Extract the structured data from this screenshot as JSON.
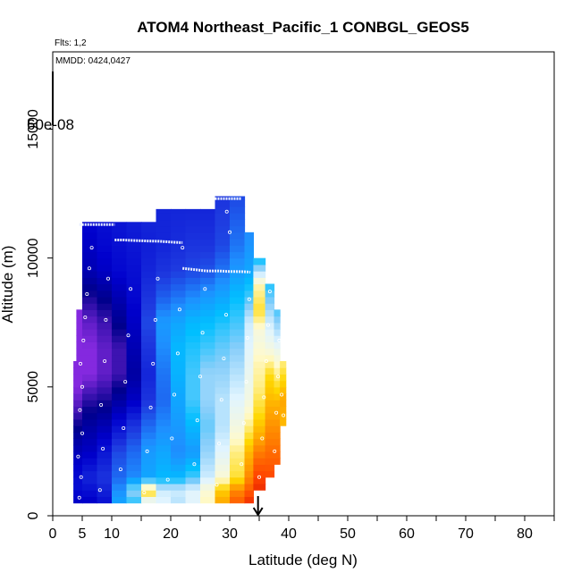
{
  "chart_data": {
    "type": "heatmap",
    "title": "ATOM4 Northeast_Pacific_1 CONBGL_GEOS5",
    "annotations": {
      "flights": "Flts: 1,2",
      "dates": "MMDD: 0424,0427",
      "colorbar_label": "60e-08"
    },
    "xlabel": "Latitude (deg N)",
    "ylabel": "Altitude (m)",
    "xlim": [
      0,
      85
    ],
    "ylim": [
      0,
      18000
    ],
    "x_tick_labels": [
      {
        "v": 0,
        "t": "0"
      },
      {
        "v": 5,
        "t": "5"
      },
      {
        "v": 10,
        "t": "10"
      },
      {
        "v": 20,
        "t": "20"
      },
      {
        "v": 30,
        "t": "30"
      },
      {
        "v": 40,
        "t": "40"
      },
      {
        "v": 50,
        "t": "50"
      },
      {
        "v": 60,
        "t": "60"
      },
      {
        "v": 70,
        "t": "70"
      },
      {
        "v": 80,
        "t": "80"
      }
    ],
    "x_minor_ticks": [
      15,
      25,
      35,
      45,
      55,
      65,
      75,
      85
    ],
    "y_tick_labels": [
      {
        "v": 0,
        "t": "0"
      },
      {
        "v": 5000,
        "t": "5000"
      },
      {
        "v": 10000,
        "t": "10000"
      },
      {
        "v": 15000,
        "t": "15000"
      }
    ],
    "colormap": [
      "#4b0082",
      "#8a2be2",
      "#00008b",
      "#0000cd",
      "#1e3ae0",
      "#1e90ff",
      "#00bfff",
      "#87cefa",
      "#e0f4ff",
      "#fffacd",
      "#ffd700",
      "#ff8c00",
      "#ff4500",
      "#cc0000"
    ],
    "profile_columns": [
      {
        "x0": 3.5,
        "x1": 5,
        "ymin": 500,
        "ymax": 6000,
        "v": [
          [
            500,
            0.22
          ],
          [
            1200,
            0.25
          ],
          [
            2000,
            0.23
          ],
          [
            3000,
            0.18
          ],
          [
            4000,
            0.12
          ],
          [
            5000,
            0.08
          ],
          [
            6000,
            0.08
          ]
        ]
      },
      {
        "x0": 4,
        "x1": 5,
        "ymin": 6000,
        "ymax": 8000,
        "v": [
          [
            6000,
            0.08
          ],
          [
            8000,
            0.08
          ]
        ]
      },
      {
        "x0": 5,
        "x1": 7.5,
        "ymin": 500,
        "ymax": 11400,
        "v": [
          [
            500,
            0.22
          ],
          [
            1500,
            0.28
          ],
          [
            2500,
            0.22
          ],
          [
            3500,
            0.18
          ],
          [
            4500,
            0.13
          ],
          [
            5500,
            0.08
          ],
          [
            6500,
            0.08
          ],
          [
            7500,
            0.1
          ],
          [
            8500,
            0.14
          ],
          [
            9500,
            0.2
          ],
          [
            10500,
            0.22
          ],
          [
            11400,
            0.24
          ]
        ]
      },
      {
        "x0": 7.5,
        "x1": 10,
        "ymin": 500,
        "ymax": 11400,
        "v": [
          [
            500,
            0.25
          ],
          [
            1500,
            0.3
          ],
          [
            2500,
            0.26
          ],
          [
            3500,
            0.2
          ],
          [
            4500,
            0.14
          ],
          [
            5500,
            0.1
          ],
          [
            6500,
            0.1
          ],
          [
            7500,
            0.12
          ],
          [
            8500,
            0.16
          ],
          [
            9500,
            0.22
          ],
          [
            10500,
            0.24
          ],
          [
            11400,
            0.25
          ]
        ]
      },
      {
        "x0": 10,
        "x1": 12.5,
        "ymin": 500,
        "ymax": 11400,
        "v": [
          [
            500,
            0.42
          ],
          [
            1500,
            0.35
          ],
          [
            2500,
            0.32
          ],
          [
            3500,
            0.25
          ],
          [
            4500,
            0.18
          ],
          [
            5500,
            0.12
          ],
          [
            6500,
            0.12
          ],
          [
            7500,
            0.16
          ],
          [
            8500,
            0.2
          ],
          [
            9500,
            0.24
          ],
          [
            10500,
            0.25
          ],
          [
            11400,
            0.26
          ]
        ]
      },
      {
        "x0": 12.5,
        "x1": 15,
        "ymin": 500,
        "ymax": 11400,
        "v": [
          [
            500,
            0.48
          ],
          [
            1000,
            0.55
          ],
          [
            1500,
            0.38
          ],
          [
            2500,
            0.35
          ],
          [
            3500,
            0.3
          ],
          [
            4500,
            0.22
          ],
          [
            5500,
            0.18
          ],
          [
            6500,
            0.2
          ],
          [
            7500,
            0.22
          ],
          [
            8500,
            0.24
          ],
          [
            9500,
            0.25
          ],
          [
            10500,
            0.26
          ],
          [
            11400,
            0.27
          ]
        ]
      },
      {
        "x0": 15,
        "x1": 17.5,
        "ymin": 500,
        "ymax": 11400,
        "v": [
          [
            500,
            0.6
          ],
          [
            1000,
            0.78
          ],
          [
            1500,
            0.42
          ],
          [
            2500,
            0.4
          ],
          [
            3500,
            0.35
          ],
          [
            4500,
            0.3
          ],
          [
            5500,
            0.28
          ],
          [
            6500,
            0.3
          ],
          [
            7500,
            0.32
          ],
          [
            8500,
            0.3
          ],
          [
            9500,
            0.28
          ],
          [
            10500,
            0.27
          ],
          [
            11400,
            0.28
          ]
        ]
      },
      {
        "x0": 17.5,
        "x1": 20,
        "ymin": 500,
        "ymax": 11900,
        "v": [
          [
            500,
            0.62
          ],
          [
            1000,
            0.6
          ],
          [
            1500,
            0.45
          ],
          [
            2500,
            0.42
          ],
          [
            3500,
            0.38
          ],
          [
            4500,
            0.35
          ],
          [
            5500,
            0.36
          ],
          [
            6500,
            0.38
          ],
          [
            7500,
            0.4
          ],
          [
            8500,
            0.34
          ],
          [
            9500,
            0.3
          ],
          [
            10500,
            0.28
          ],
          [
            11900,
            0.28
          ]
        ]
      },
      {
        "x0": 20,
        "x1": 22.5,
        "ymin": 500,
        "ymax": 11900,
        "v": [
          [
            500,
            0.58
          ],
          [
            1000,
            0.6
          ],
          [
            1500,
            0.45
          ],
          [
            2500,
            0.38
          ],
          [
            3500,
            0.4
          ],
          [
            4500,
            0.42
          ],
          [
            5500,
            0.44
          ],
          [
            6500,
            0.45
          ],
          [
            7500,
            0.42
          ],
          [
            8500,
            0.36
          ],
          [
            9500,
            0.31
          ],
          [
            10500,
            0.29
          ],
          [
            11900,
            0.28
          ]
        ]
      },
      {
        "x0": 22.5,
        "x1": 25,
        "ymin": 500,
        "ymax": 11900,
        "v": [
          [
            500,
            0.62
          ],
          [
            1000,
            0.62
          ],
          [
            1500,
            0.5
          ],
          [
            2500,
            0.4
          ],
          [
            3500,
            0.45
          ],
          [
            4500,
            0.5
          ],
          [
            5500,
            0.5
          ],
          [
            6500,
            0.48
          ],
          [
            7500,
            0.45
          ],
          [
            8500,
            0.38
          ],
          [
            9500,
            0.32
          ],
          [
            10500,
            0.3
          ],
          [
            11900,
            0.28
          ]
        ]
      },
      {
        "x0": 25,
        "x1": 27.5,
        "ymin": 500,
        "ymax": 11900,
        "v": [
          [
            500,
            0.7
          ],
          [
            1000,
            0.68
          ],
          [
            1500,
            0.6
          ],
          [
            2500,
            0.55
          ],
          [
            3500,
            0.52
          ],
          [
            4500,
            0.55
          ],
          [
            5500,
            0.55
          ],
          [
            6500,
            0.5
          ],
          [
            7500,
            0.46
          ],
          [
            8500,
            0.4
          ],
          [
            9500,
            0.33
          ],
          [
            10500,
            0.3
          ],
          [
            11900,
            0.28
          ]
        ]
      },
      {
        "x0": 27.5,
        "x1": 30,
        "ymin": 500,
        "ymax": 12400,
        "v": [
          [
            500,
            0.82
          ],
          [
            1000,
            0.78
          ],
          [
            1500,
            0.68
          ],
          [
            2500,
            0.62
          ],
          [
            3500,
            0.58
          ],
          [
            4500,
            0.58
          ],
          [
            5500,
            0.55
          ],
          [
            6500,
            0.52
          ],
          [
            7500,
            0.48
          ],
          [
            8500,
            0.42
          ],
          [
            9500,
            0.36
          ],
          [
            10500,
            0.32
          ],
          [
            12400,
            0.3
          ]
        ]
      },
      {
        "x0": 30,
        "x1": 32.5,
        "ymin": 500,
        "ymax": 12400,
        "v": [
          [
            500,
            0.9
          ],
          [
            1000,
            0.85
          ],
          [
            1500,
            0.75
          ],
          [
            2500,
            0.72
          ],
          [
            3500,
            0.66
          ],
          [
            4500,
            0.62
          ],
          [
            5500,
            0.58
          ],
          [
            6500,
            0.54
          ],
          [
            7500,
            0.5
          ],
          [
            8500,
            0.46
          ],
          [
            9500,
            0.4
          ],
          [
            10500,
            0.36
          ],
          [
            12400,
            0.32
          ]
        ]
      },
      {
        "x0": 32.5,
        "x1": 34,
        "ymin": 500,
        "ymax": 11000,
        "v": [
          [
            500,
            0.95
          ],
          [
            1500,
            0.85
          ],
          [
            2500,
            0.8
          ],
          [
            3500,
            0.72
          ],
          [
            4500,
            0.66
          ],
          [
            5500,
            0.64
          ],
          [
            6500,
            0.62
          ],
          [
            7500,
            0.6
          ],
          [
            8500,
            0.5
          ],
          [
            9500,
            0.42
          ],
          [
            11000,
            0.38
          ]
        ]
      },
      {
        "x0": 34,
        "x1": 36,
        "ymin": 1000,
        "ymax": 10000,
        "v": [
          [
            1000,
            0.95
          ],
          [
            2000,
            0.9
          ],
          [
            3000,
            0.82
          ],
          [
            4000,
            0.76
          ],
          [
            5000,
            0.72
          ],
          [
            6000,
            0.7
          ],
          [
            7000,
            0.66
          ],
          [
            8000,
            0.75
          ],
          [
            9000,
            0.7
          ],
          [
            10000,
            0.45
          ]
        ]
      },
      {
        "x0": 36,
        "x1": 37.5,
        "ymin": 1500,
        "ymax": 9000,
        "v": [
          [
            1500,
            0.92
          ],
          [
            3000,
            0.86
          ],
          [
            4500,
            0.8
          ],
          [
            5500,
            0.76
          ],
          [
            6500,
            0.66
          ],
          [
            7500,
            0.6
          ],
          [
            8500,
            0.52
          ],
          [
            9000,
            0.48
          ]
        ]
      },
      {
        "x0": 37.5,
        "x1": 38.5,
        "ymin": 2000,
        "ymax": 8000,
        "v": [
          [
            2000,
            0.9
          ],
          [
            3500,
            0.84
          ],
          [
            4500,
            0.8
          ],
          [
            5500,
            0.72
          ],
          [
            6500,
            0.64
          ],
          [
            8000,
            0.5
          ]
        ]
      },
      {
        "x0": 38.5,
        "x1": 39.5,
        "ymin": 3500,
        "ymax": 6000,
        "v": [
          [
            3500,
            0.8
          ],
          [
            4500,
            0.82
          ],
          [
            6000,
            0.72
          ]
        ]
      }
    ],
    "flight_tracks": [
      {
        "x": [
          4.5,
          5.5,
          6.5,
          7.5,
          8.5,
          9.5,
          10.5
        ],
        "y": [
          11300,
          11300,
          11300,
          11300,
          11300,
          11300,
          11300
        ]
      },
      {
        "x": [
          10.5,
          12,
          14,
          16,
          18,
          20,
          21.5,
          22
        ],
        "y": [
          10700,
          10700,
          10680,
          10660,
          10650,
          10620,
          10600,
          10600
        ]
      },
      {
        "x": [
          22,
          24,
          26,
          28,
          30,
          32,
          33,
          33.5
        ],
        "y": [
          9600,
          9550,
          9500,
          9500,
          9480,
          9470,
          9460,
          9450
        ]
      },
      {
        "x": [
          27.5,
          28.5,
          29.5,
          30.5,
          31.5,
          32
        ],
        "y": [
          12300,
          12300,
          12300,
          12300,
          12300,
          12300
        ]
      }
    ],
    "sample_points": [
      [
        4.5,
        700
      ],
      [
        4.8,
        1500
      ],
      [
        4.3,
        2300
      ],
      [
        5,
        3200
      ],
      [
        4.6,
        4100
      ],
      [
        5,
        5000
      ],
      [
        4.7,
        5900
      ],
      [
        5.2,
        6800
      ],
      [
        5.5,
        7700
      ],
      [
        5.8,
        8600
      ],
      [
        6.2,
        9600
      ],
      [
        6.6,
        10400
      ],
      [
        8,
        1000
      ],
      [
        8.5,
        2600
      ],
      [
        8.2,
        4300
      ],
      [
        8.8,
        6000
      ],
      [
        9,
        7600
      ],
      [
        9.4,
        9200
      ],
      [
        11.5,
        1800
      ],
      [
        12,
        3400
      ],
      [
        12.3,
        5200
      ],
      [
        12.8,
        7000
      ],
      [
        13.2,
        8800
      ],
      [
        15.5,
        900
      ],
      [
        16,
        2500
      ],
      [
        16.6,
        4200
      ],
      [
        17,
        5900
      ],
      [
        17.4,
        7600
      ],
      [
        17.8,
        9200
      ],
      [
        19.5,
        1400
      ],
      [
        20.2,
        3000
      ],
      [
        20.6,
        4700
      ],
      [
        21.2,
        6300
      ],
      [
        21.5,
        8000
      ],
      [
        22,
        10400
      ],
      [
        24,
        2000
      ],
      [
        24.5,
        3700
      ],
      [
        25,
        5400
      ],
      [
        25.4,
        7100
      ],
      [
        25.8,
        8800
      ],
      [
        27.8,
        1200
      ],
      [
        28.2,
        2800
      ],
      [
        28.6,
        4500
      ],
      [
        29,
        6100
      ],
      [
        29.4,
        7800
      ],
      [
        30,
        11000
      ],
      [
        29.5,
        11800
      ],
      [
        32,
        2000
      ],
      [
        32.4,
        3600
      ],
      [
        32.8,
        5200
      ],
      [
        33,
        6900
      ],
      [
        33.3,
        8400
      ],
      [
        35,
        1500
      ],
      [
        35.5,
        3000
      ],
      [
        35.8,
        4600
      ],
      [
        36.2,
        6000
      ],
      [
        36.5,
        7400
      ],
      [
        36.8,
        8700
      ],
      [
        37.6,
        2500
      ],
      [
        37.9,
        4000
      ],
      [
        38.2,
        5400
      ],
      [
        38.4,
        6800
      ],
      [
        38.8,
        4700
      ],
      [
        39.1,
        3900
      ]
    ],
    "marker": {
      "x": 34.8,
      "y": 0
    }
  }
}
